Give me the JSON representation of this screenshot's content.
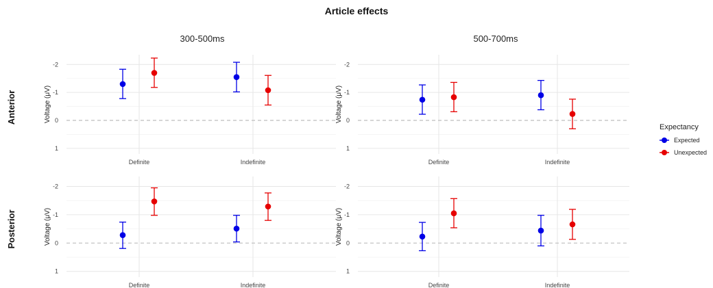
{
  "chart_data": {
    "type": "scatter",
    "title": "Article effects",
    "x_categories": [
      "Definite",
      "Indefinite"
    ],
    "ylabel": "Voltage (μV)",
    "y_ticks": [
      -2,
      -1,
      0,
      1
    ],
    "y_tick_labels": [
      "-2",
      "-1",
      "0",
      "1"
    ],
    "ylim": [
      -2.35,
      1.2
    ],
    "y_reversed": true,
    "reference_line": 0,
    "grid": true,
    "legend": {
      "title": "Expectancy",
      "position": "right",
      "entries": [
        {
          "label": "Expected",
          "color": "#0000e6"
        },
        {
          "label": "Unexpected",
          "color": "#e60000"
        }
      ]
    },
    "columns": [
      "300-500ms",
      "500-700ms"
    ],
    "rows": [
      "Anterior",
      "Posterior"
    ],
    "panels": [
      {
        "row": "Anterior",
        "column": "300-500ms",
        "series": [
          {
            "name": "Expected",
            "points": [
              {
                "x": "Definite",
                "y": -1.3,
                "ymin": -1.83,
                "ymax": -0.78
              },
              {
                "x": "Indefinite",
                "y": -1.55,
                "ymin": -2.08,
                "ymax": -1.02
              }
            ]
          },
          {
            "name": "Unexpected",
            "points": [
              {
                "x": "Definite",
                "y": -1.7,
                "ymin": -2.23,
                "ymax": -1.18
              },
              {
                "x": "Indefinite",
                "y": -1.08,
                "ymin": -1.61,
                "ymax": -0.55
              }
            ]
          }
        ]
      },
      {
        "row": "Anterior",
        "column": "500-700ms",
        "series": [
          {
            "name": "Expected",
            "points": [
              {
                "x": "Definite",
                "y": -0.74,
                "ymin": -1.27,
                "ymax": -0.22
              },
              {
                "x": "Indefinite",
                "y": -0.9,
                "ymin": -1.43,
                "ymax": -0.38
              }
            ]
          },
          {
            "name": "Unexpected",
            "points": [
              {
                "x": "Definite",
                "y": -0.83,
                "ymin": -1.36,
                "ymax": -0.31
              },
              {
                "x": "Indefinite",
                "y": -0.23,
                "ymin": -0.76,
                "ymax": 0.3
              }
            ]
          }
        ]
      },
      {
        "row": "Posterior",
        "column": "300-500ms",
        "series": [
          {
            "name": "Expected",
            "points": [
              {
                "x": "Definite",
                "y": -0.28,
                "ymin": -0.74,
                "ymax": 0.19
              },
              {
                "x": "Indefinite",
                "y": -0.51,
                "ymin": -0.98,
                "ymax": -0.04
              }
            ]
          },
          {
            "name": "Unexpected",
            "points": [
              {
                "x": "Definite",
                "y": -1.47,
                "ymin": -1.95,
                "ymax": -0.98
              },
              {
                "x": "Indefinite",
                "y": -1.29,
                "ymin": -1.77,
                "ymax": -0.8
              }
            ]
          }
        ]
      },
      {
        "row": "Posterior",
        "column": "500-700ms",
        "series": [
          {
            "name": "Expected",
            "points": [
              {
                "x": "Definite",
                "y": -0.23,
                "ymin": -0.73,
                "ymax": 0.27
              },
              {
                "x": "Indefinite",
                "y": -0.44,
                "ymin": -0.98,
                "ymax": 0.1
              }
            ]
          },
          {
            "name": "Unexpected",
            "points": [
              {
                "x": "Definite",
                "y": -1.05,
                "ymin": -1.57,
                "ymax": -0.54
              },
              {
                "x": "Indefinite",
                "y": -0.66,
                "ymin": -1.19,
                "ymax": -0.13
              }
            ]
          }
        ]
      }
    ]
  }
}
